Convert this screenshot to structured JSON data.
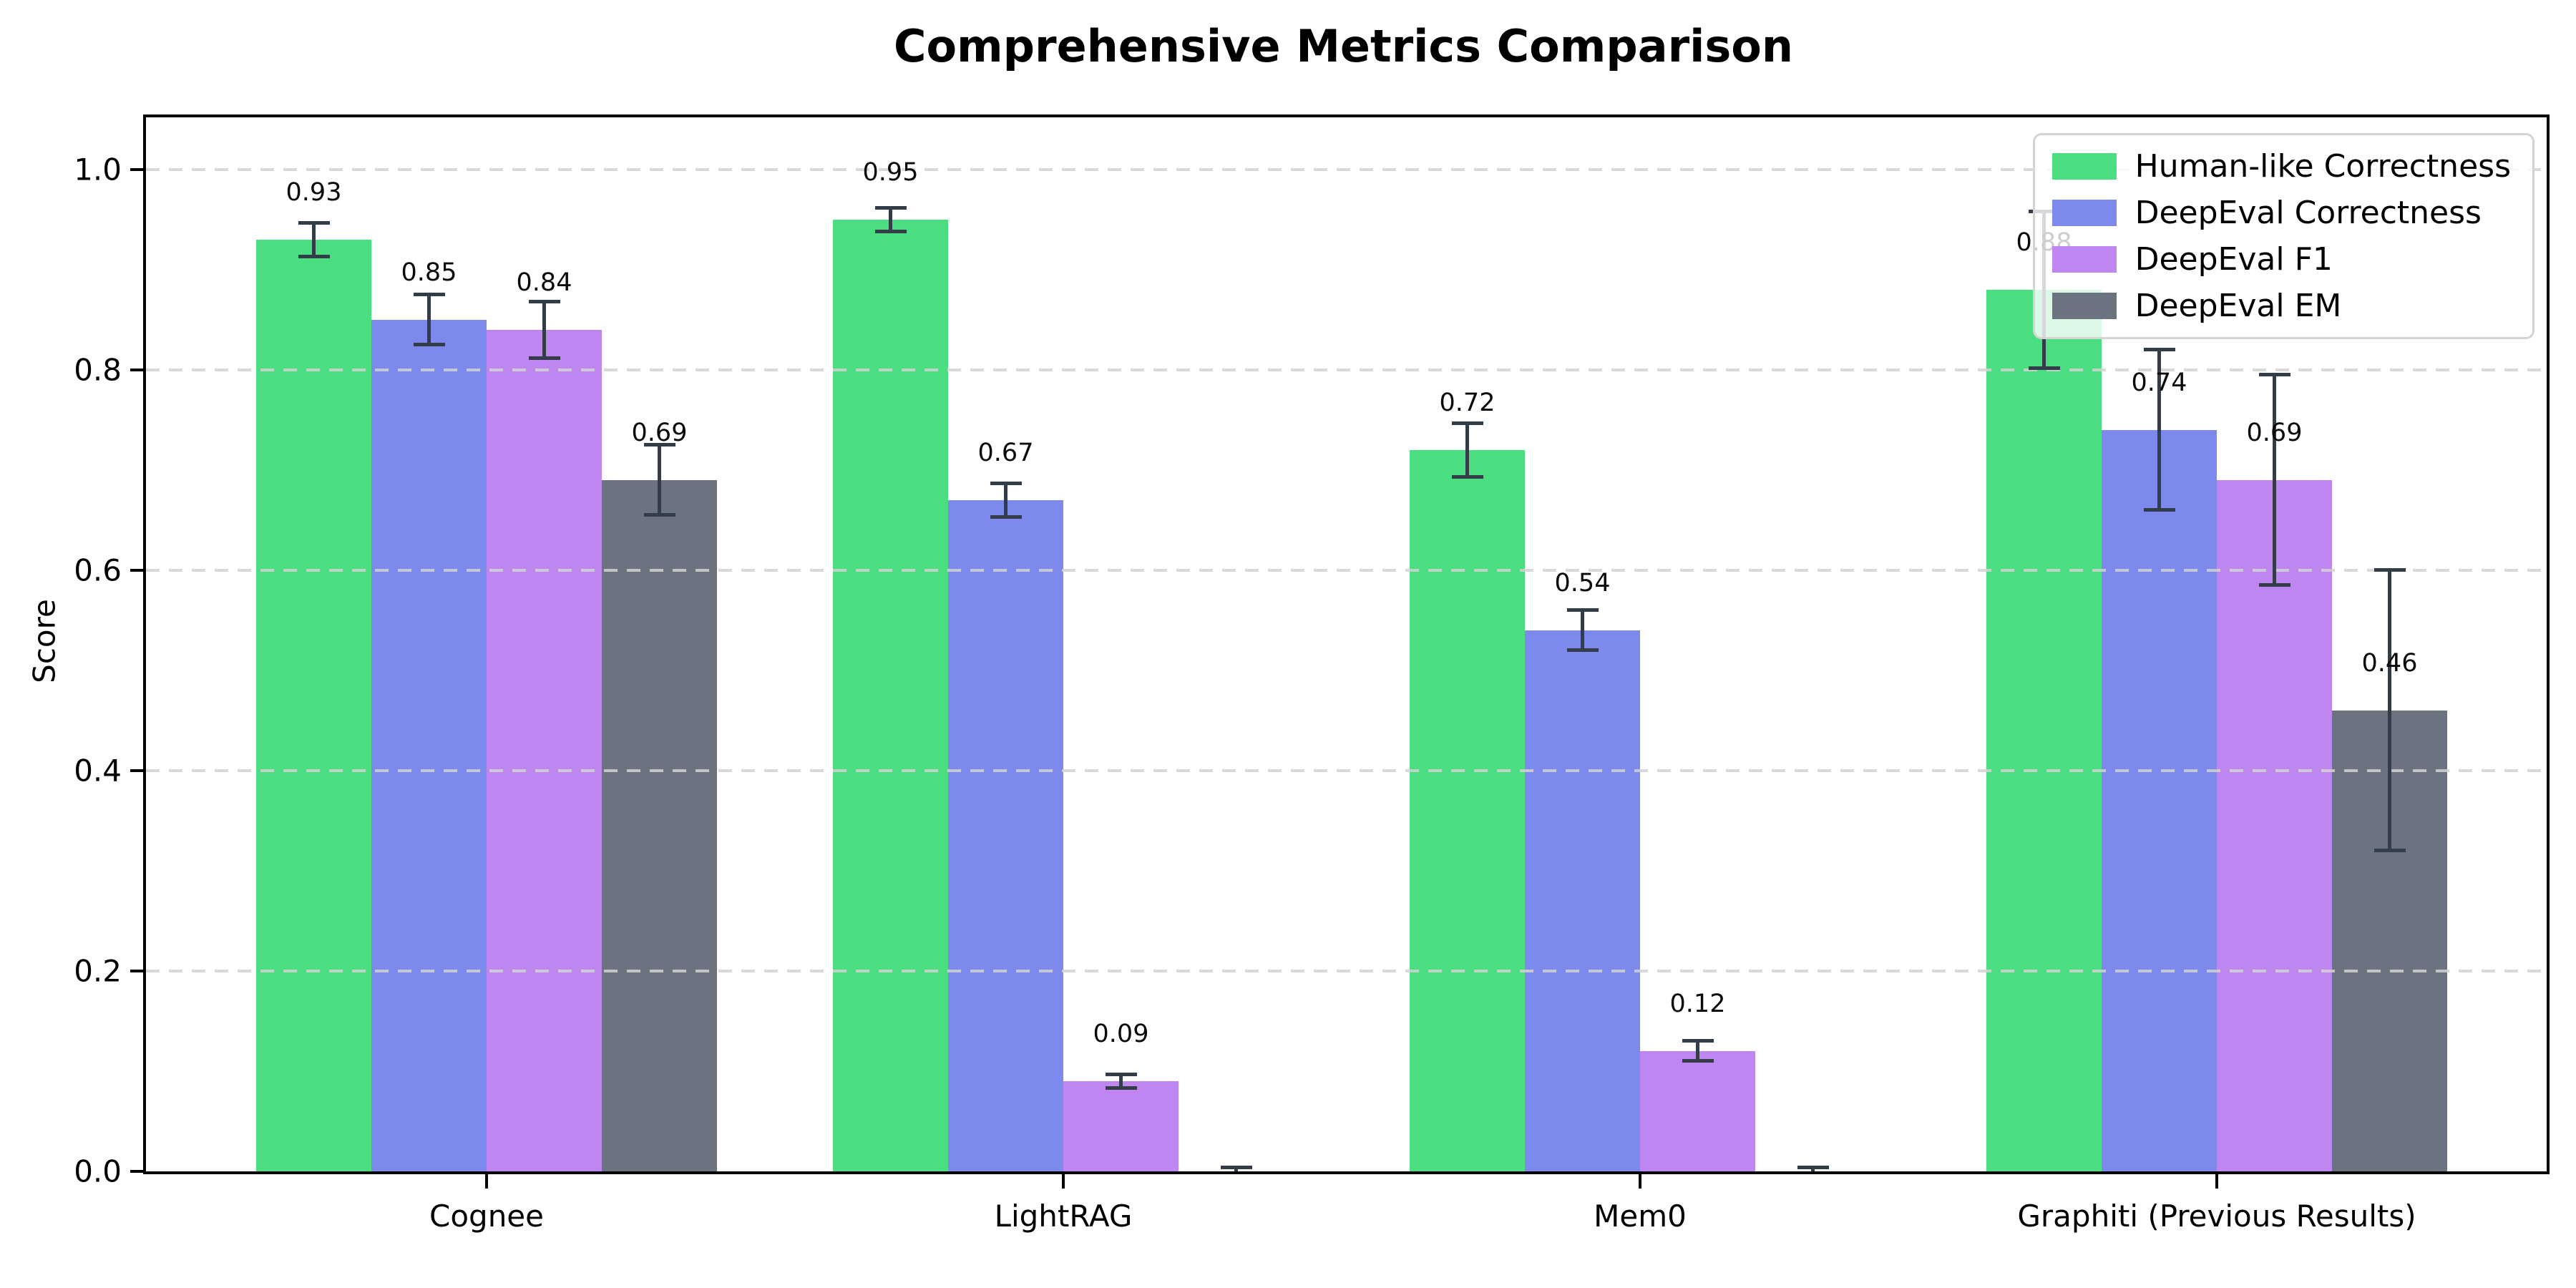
{
  "chart_data": {
    "type": "bar",
    "title": "Comprehensive Metrics Comparison",
    "xlabel": "",
    "ylabel": "Score",
    "ylim": [
      0,
      1.052
    ],
    "yticks": [
      "0.0",
      "0.2",
      "0.4",
      "0.6",
      "0.8",
      "1.0"
    ],
    "grid": {
      "axis": "y",
      "style": "dashed",
      "color": "#d2d2d2",
      "above_bars": true
    },
    "legend_position": "upper right",
    "categories": [
      "Cognee",
      "LightRAG",
      "Mem0",
      "Graphiti (Previous Results)"
    ],
    "series": [
      {
        "name": "Human-like Correctness",
        "color": "#4ade80",
        "values": [
          0.93,
          0.95,
          0.72,
          0.88
        ],
        "errors": [
          0.017,
          0.012,
          0.027,
          0.078
        ],
        "labels": [
          "0.93",
          "0.95",
          "0.72",
          "0.88"
        ]
      },
      {
        "name": "DeepEval Correctness",
        "color": "#7d89ec",
        "values": [
          0.85,
          0.67,
          0.54,
          0.74
        ],
        "errors": [
          0.025,
          0.017,
          0.02,
          0.08
        ],
        "labels": [
          "0.85",
          "0.67",
          "0.54",
          "0.74"
        ]
      },
      {
        "name": "DeepEval F1",
        "color": "#bf85f0",
        "values": [
          0.84,
          0.09,
          0.12,
          0.69
        ],
        "errors": [
          0.028,
          0.007,
          0.01,
          0.105
        ],
        "labels": [
          "0.84",
          "0.09",
          "0.12",
          "0.69"
        ]
      },
      {
        "name": "DeepEval EM",
        "color": "#6b7280",
        "values": [
          0.69,
          0.0,
          0.0,
          0.46
        ],
        "errors": [
          0.035,
          0.004,
          0.004,
          0.14
        ],
        "labels": [
          "0.69",
          null,
          null,
          "0.46"
        ]
      }
    ],
    "error_bar_color": "#333d4a"
  }
}
